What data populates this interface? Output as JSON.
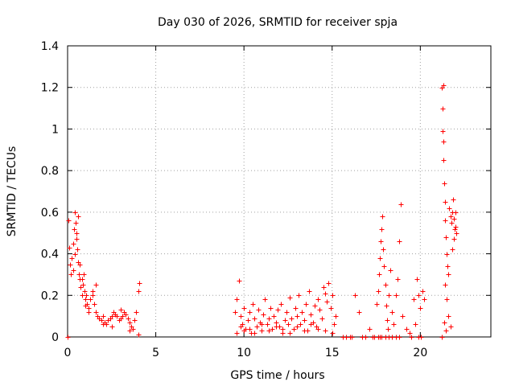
{
  "chart_data": {
    "type": "scatter",
    "title": "Day 030 of 2026, SRMTID for receiver spja",
    "xlabel": "GPS time / hours",
    "ylabel": "SRMTID / TECUs",
    "xlim": [
      0,
      24
    ],
    "ylim": [
      0,
      1.4
    ],
    "xticks": [
      0,
      5,
      10,
      15,
      20
    ],
    "xtick_labels": [
      "0",
      "5",
      "10",
      "15",
      "20"
    ],
    "yticks": [
      0,
      0.2,
      0.4,
      0.6,
      0.8,
      1,
      1.2,
      1.4
    ],
    "ytick_labels": [
      "0",
      "0.2",
      "0.4",
      "0.6",
      "0.8",
      "1",
      "1.2",
      "1.4"
    ],
    "grid": true,
    "marker": "plus",
    "series": [
      {
        "name": "SRMTID",
        "color": "#ff0000",
        "x": [
          0.05,
          0.1,
          0.15,
          0.2,
          0.25,
          0.3,
          0.35,
          0.4,
          0.45,
          0.5,
          0.55,
          0.6,
          0.65,
          0.7,
          0.75,
          0.8,
          0.85,
          0.9,
          0.95,
          1.0,
          1.05,
          1.1,
          1.2,
          1.3,
          1.4,
          1.5,
          1.6,
          1.7,
          1.8,
          1.9,
          2.0,
          2.1,
          2.2,
          2.3,
          2.4,
          2.5,
          2.6,
          2.7,
          2.8,
          2.9,
          3.0,
          3.1,
          3.2,
          3.3,
          3.4,
          3.5,
          3.6,
          3.7,
          3.8,
          3.9,
          4.0,
          4.05,
          0.02,
          0.3,
          0.4,
          0.5,
          0.6,
          0.7,
          0.8,
          1.0,
          1.2,
          1.4,
          1.6,
          2.0,
          2.5,
          3.0,
          3.5,
          4.0,
          9.5,
          9.6,
          9.7,
          9.8,
          9.9,
          10.0,
          10.1,
          10.2,
          10.3,
          10.4,
          10.5,
          10.6,
          10.7,
          10.8,
          10.9,
          11.0,
          11.1,
          11.2,
          11.3,
          11.4,
          11.5,
          11.6,
          11.7,
          11.8,
          11.9,
          12.0,
          12.1,
          12.2,
          12.3,
          12.4,
          12.5,
          12.6,
          12.7,
          12.8,
          12.9,
          13.0,
          13.1,
          13.2,
          13.3,
          13.4,
          13.5,
          13.6,
          13.7,
          13.8,
          13.9,
          14.0,
          14.1,
          14.2,
          14.3,
          14.4,
          14.5,
          14.6,
          14.7,
          14.8,
          14.9,
          15.0,
          15.1,
          15.2,
          9.6,
          9.8,
          10.0,
          10.3,
          10.6,
          11.0,
          11.4,
          11.8,
          12.2,
          12.6,
          13.0,
          13.4,
          13.8,
          14.2,
          14.6,
          15.0,
          15.6,
          15.8,
          16.0,
          16.1,
          16.3,
          16.5,
          16.7,
          16.9,
          17.1,
          17.3,
          17.4,
          17.5,
          17.6,
          17.65,
          17.7,
          17.75,
          17.8,
          17.85,
          17.9,
          17.95,
          18.0,
          18.05,
          18.1,
          18.15,
          18.2,
          18.3,
          18.4,
          18.5,
          18.6,
          18.7,
          18.8,
          18.9,
          19.0,
          19.2,
          19.4,
          19.6,
          19.7,
          19.8,
          19.9,
          20.0,
          20.1,
          20.2,
          17.6,
          17.7,
          17.8,
          18.0,
          18.2,
          18.4,
          18.6,
          18.8,
          19.5,
          19.9,
          20.05,
          21.2,
          21.22,
          21.25,
          21.28,
          21.3,
          21.32,
          21.35,
          21.38,
          21.4,
          21.45,
          21.5,
          21.55,
          21.6,
          21.65,
          21.7,
          21.75,
          21.8,
          21.85,
          21.9,
          21.95,
          22.0,
          22.05,
          21.3,
          21.4,
          21.5,
          21.6,
          21.7,
          21.8,
          21.9,
          22.0,
          21.35,
          21.45
        ],
        "y": [
          0.56,
          0.43,
          0.35,
          0.3,
          0.38,
          0.45,
          0.52,
          0.6,
          0.55,
          0.5,
          0.42,
          0.36,
          0.3,
          0.28,
          0.24,
          0.2,
          0.25,
          0.3,
          0.22,
          0.18,
          0.2,
          0.16,
          0.14,
          0.18,
          0.22,
          0.16,
          0.12,
          0.1,
          0.09,
          0.08,
          0.1,
          0.07,
          0.06,
          0.08,
          0.09,
          0.1,
          0.12,
          0.11,
          0.1,
          0.08,
          0.09,
          0.1,
          0.12,
          0.11,
          0.09,
          0.07,
          0.05,
          0.04,
          0.08,
          0.12,
          0.22,
          0.26,
          0.0,
          0.32,
          0.4,
          0.47,
          0.58,
          0.35,
          0.28,
          0.15,
          0.12,
          0.2,
          0.25,
          0.06,
          0.05,
          0.13,
          0.03,
          0.01,
          0.12,
          0.18,
          0.27,
          0.1,
          0.06,
          0.14,
          0.04,
          0.08,
          0.12,
          0.02,
          0.16,
          0.09,
          0.05,
          0.13,
          0.07,
          0.03,
          0.11,
          0.18,
          0.06,
          0.09,
          0.14,
          0.04,
          0.1,
          0.07,
          0.13,
          0.05,
          0.16,
          0.02,
          0.08,
          0.12,
          0.06,
          0.19,
          0.09,
          0.04,
          0.14,
          0.1,
          0.2,
          0.06,
          0.12,
          0.08,
          0.16,
          0.03,
          0.22,
          0.11,
          0.07,
          0.15,
          0.05,
          0.18,
          0.13,
          0.09,
          0.24,
          0.21,
          0.17,
          0.26,
          0.14,
          0.2,
          0.06,
          0.1,
          0.02,
          0.05,
          0.03,
          0.04,
          0.02,
          0.06,
          0.03,
          0.05,
          0.04,
          0.02,
          0.05,
          0.03,
          0.06,
          0.04,
          0.03,
          0.02,
          0.0,
          0.0,
          0.0,
          0.0,
          0.2,
          0.12,
          0.0,
          0.0,
          0.04,
          0.0,
          0.0,
          0.16,
          0.22,
          0.3,
          0.38,
          0.46,
          0.52,
          0.58,
          0.42,
          0.34,
          0.25,
          0.15,
          0.08,
          0.04,
          0.2,
          0.32,
          0.12,
          0.06,
          0.2,
          0.28,
          0.46,
          0.64,
          0.1,
          0.04,
          0.02,
          0.18,
          0.06,
          0.28,
          0.2,
          0.14,
          0.22,
          0.18,
          0.0,
          0.0,
          0.0,
          0.0,
          0.0,
          0.0,
          0.0,
          0.0,
          0.0,
          0.0,
          0.0,
          0.0,
          1.2,
          1.1,
          0.99,
          0.94,
          0.85,
          0.74,
          0.65,
          0.56,
          0.48,
          0.4,
          0.34,
          0.3,
          0.62,
          0.58,
          0.55,
          0.6,
          0.66,
          0.57,
          0.52,
          0.53,
          0.5,
          1.21,
          0.25,
          0.18,
          0.1,
          0.05,
          0.42,
          0.47,
          0.6,
          0.07,
          0.03
        ]
      }
    ]
  }
}
